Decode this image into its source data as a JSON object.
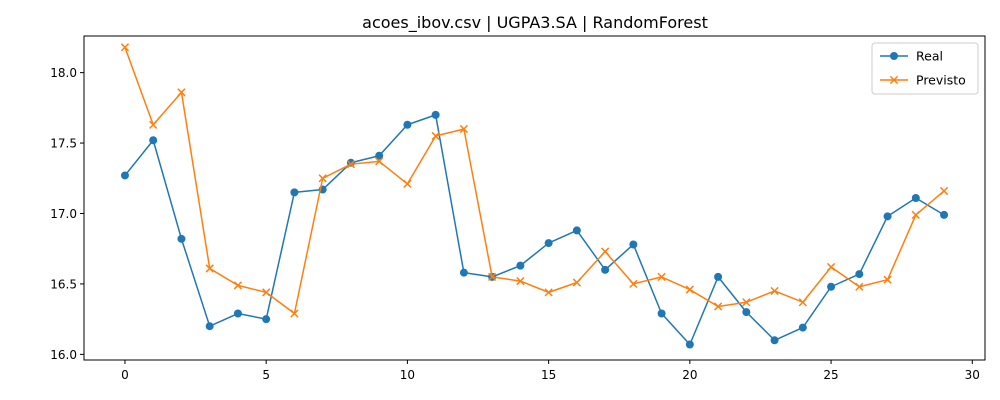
{
  "chart_data": {
    "type": "line",
    "title": "acoes_ibov.csv | UGPA3.SA | RandomForest",
    "xlabel": "",
    "ylabel": "",
    "xlim": [
      -1.45,
      30.45
    ],
    "ylim": [
      15.96,
      18.26
    ],
    "xticks": [
      0,
      5,
      10,
      15,
      20,
      25,
      30
    ],
    "yticks": [
      16.0,
      16.5,
      17.0,
      17.5,
      18.0
    ],
    "ytick_labels": [
      "16.0",
      "16.5",
      "17.0",
      "17.5",
      "18.0"
    ],
    "grid": false,
    "legend_position": "top-right",
    "x": [
      0,
      1,
      2,
      3,
      4,
      5,
      6,
      7,
      8,
      9,
      10,
      11,
      12,
      13,
      14,
      15,
      16,
      17,
      18,
      19,
      20,
      21,
      22,
      23,
      24,
      25,
      26,
      27,
      28,
      29
    ],
    "series": [
      {
        "name": "Real",
        "color": "#1f77b4",
        "marker": "circle",
        "values": [
          17.27,
          17.52,
          16.82,
          16.2,
          16.29,
          16.25,
          17.15,
          17.17,
          17.36,
          17.41,
          17.63,
          17.7,
          16.58,
          16.55,
          16.63,
          16.79,
          16.88,
          16.6,
          16.78,
          16.29,
          16.07,
          16.55,
          16.3,
          16.1,
          16.19,
          16.48,
          16.57,
          16.98,
          17.11,
          16.99
        ]
      },
      {
        "name": "Previsto",
        "color": "#ff7f0e",
        "marker": "x",
        "values": [
          18.18,
          17.63,
          17.86,
          16.61,
          16.49,
          16.44,
          16.29,
          17.25,
          17.35,
          17.37,
          17.21,
          17.55,
          17.6,
          16.55,
          16.52,
          16.44,
          16.51,
          16.73,
          16.5,
          16.55,
          16.46,
          16.34,
          16.37,
          16.45,
          16.37,
          16.62,
          16.48,
          16.53,
          16.99,
          17.16
        ]
      }
    ]
  }
}
